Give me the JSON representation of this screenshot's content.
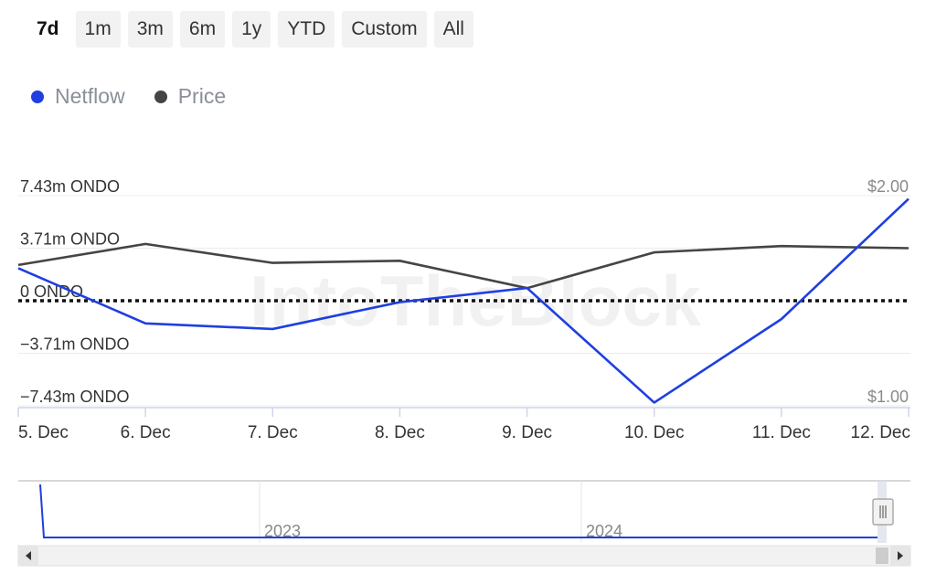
{
  "range_buttons": [
    "7d",
    "1m",
    "3m",
    "6m",
    "1y",
    "YTD",
    "Custom",
    "All"
  ],
  "active_range": "7d",
  "legend": [
    {
      "label": "Netflow",
      "color": "#1f3fe0"
    },
    {
      "label": "Price",
      "color": "#454545"
    }
  ],
  "watermark": "IntoTheBlock",
  "chart_data": {
    "type": "line",
    "categories": [
      "5. Dec",
      "6. Dec",
      "7. Dec",
      "8. Dec",
      "9. Dec",
      "10. Dec",
      "11. Dec",
      "12. Dec"
    ],
    "y_left": {
      "ticks": [
        "7.43m ONDO",
        "3.71m ONDO",
        "0 ONDO",
        "−3.71m ONDO",
        "−7.43m ONDO"
      ],
      "range": [
        -7.43,
        7.43
      ],
      "unit": "m ONDO"
    },
    "y_right": {
      "ticks": [
        "$2.00",
        "$1.00"
      ],
      "range": [
        1.0,
        2.0
      ]
    },
    "series": [
      {
        "name": "Netflow",
        "axis": "left",
        "color": "#1f3fe0",
        "values": [
          2.3,
          -1.6,
          -2.0,
          -0.1,
          0.9,
          -7.2,
          -1.3,
          7.2
        ]
      },
      {
        "name": "Price",
        "axis": "right",
        "color": "#454545",
        "values": [
          1.67,
          1.77,
          1.68,
          1.69,
          1.56,
          1.73,
          1.76,
          1.75
        ]
      }
    ],
    "zero_line": "dotted",
    "navigator": {
      "labels": [
        "2023",
        "2024"
      ]
    }
  }
}
